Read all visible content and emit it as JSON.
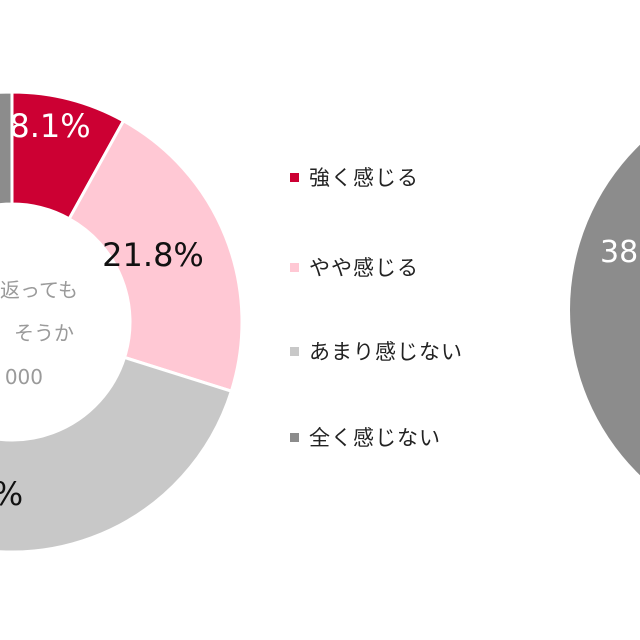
{
  "colors": {
    "strong": "#cc0033",
    "somewhat": "#ffc8d4",
    "not_much": "#c8c8c8",
    "not_at_all": "#8c8c8c",
    "background": "#ffffff"
  },
  "center_text": {
    "line1": "返っても",
    "line2": "そうか",
    "line3": "000"
  },
  "chart_data": [
    {
      "type": "pie",
      "style": "donut",
      "partially_visible": true,
      "categories": [
        "強く感じる",
        "やや感じる",
        "あまり感じない",
        "全く感じない"
      ],
      "values": [
        8.1,
        21.8,
        null,
        null
      ],
      "data_labels": [
        "8.1%",
        "21.8%",
        "%",
        ""
      ],
      "legend": {
        "placement": "right",
        "entries": [
          "強く感じる",
          "やや感じる",
          "あまり感じない",
          "全く感じない"
        ]
      }
    },
    {
      "type": "pie",
      "style": "donut",
      "partially_visible": true,
      "visible_label": "38"
    }
  ]
}
